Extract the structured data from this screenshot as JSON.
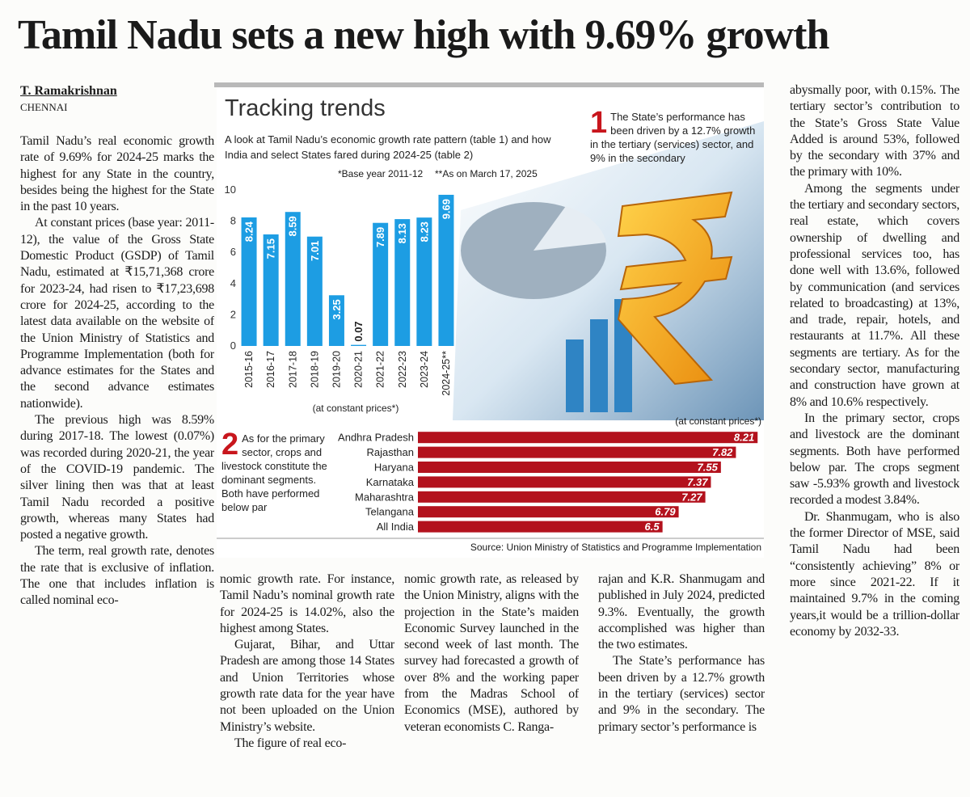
{
  "headline": "Tamil Nadu sets a new high with 9.69% growth",
  "byline": "T. Ramakrishnan",
  "dateline": "CHENNAI",
  "columns": {
    "left": [
      "Tamil Nadu’s real economic growth rate of 9.69% for 2024-25 marks the highest for any State in the country, besides being the highest for the State in the past 10 years.",
      "At constant prices (base year: 2011-12), the value of the Gross State Domestic Product (GSDP) of Tamil Nadu, estimated at ₹15,71,368 crore for 2023-24, had risen to ₹17,23,698 crore for 2024-25, according to the latest data available on the website of the Union Ministry of Statistics and Programme Implementation (both for advance estimates for the States and the second advance estimates nationwide).",
      "The previous high was 8.59% during 2017-18. The lowest (0.07%) was recorded during 2020-21, the year of the COVID-19 pandemic. The silver lining then was that at least Tamil Nadu recorded a positive growth, whereas many States had posted a negative growth.",
      "The term, real growth rate, denotes the rate that is exclusive of inflation. The one that includes inflation is called nominal eco-"
    ],
    "bottom1": [
      "nomic growth rate. For instance, Tamil Nadu’s nominal growth rate for 2024-25 is 14.02%, also the highest among States.",
      "Gujarat, Bihar, and Uttar Pradesh are among those 14 States and Union Territories whose growth rate data for the year have not been uploaded on the Union Ministry’s website.",
      "The figure of real eco-"
    ],
    "bottom2": [
      "nomic growth rate, as released by the Union Ministry, aligns with the projection in the State’s maiden Economic Survey launched in the second week of last month. The survey had forecasted a growth of over 8% and the working paper from the Madras School of Economics (MSE), authored by veteran economists C. Ranga-"
    ],
    "bottom3": [
      "rajan and K.R. Shanmugam and published in July 2024, predicted 9.3%. Eventually, the growth accomplished was higher than the two estimates.",
      "The State’s performance has been driven by a 12.7% growth in the tertiary (services) sector and 9% in the secondary. The primary sector’s performance is"
    ],
    "right": [
      "abysmally poor, with 0.15%. The tertiary sector’s contribution to the State’s Gross State Value Added is around 53%, followed by the secondary with 37% and the primary with 10%.",
      "Among the segments under the tertiary and secondary sectors, real estate, which covers ownership of dwelling and professional services too, has done well with 13.6%, followed by communication (and services related to broadcasting) at 13%, and trade, repair, hotels, and restaurants at 11.7%. All these segments are tertiary. As for the secondary sector, manufacturing and construction have grown at 8% and 10.6% respectively.",
      "In the primary sector, crops and livestock are the dominant segments. Both have performed below par. The crops segment saw -5.93% growth and livestock recorded a modest 3.84%.",
      "Dr. Shanmugam, who is also the former Director of MSE, said Tamil Nadu had been “consistently achieving” 8% or more since 2021-22. If it maintained 9.7% in the coming years,it would be a trillion-dollar economy by 2032-33."
    ]
  },
  "infographic": {
    "title": "Tracking trends",
    "subtitle": "A look at Tamil Nadu’s economic growth rate pattern (table 1) and how India and select States fared during 2024-25 (table 2)",
    "notes": [
      "*Base year 2011-12",
      "**As on March 17, 2025"
    ],
    "callouts": [
      {
        "number": "1",
        "text": "The State’s performance has been driven by a 12.7% growth in the tertiary (services) sector, and 9% in the secondary"
      },
      {
        "number": "2",
        "text": "As for the primary sector, crops and livestock constitute the dominant segments. Both have performed below par"
      }
    ],
    "source": "Source: Union Ministry of Statistics and Programme Implementation"
  },
  "chart_data": [
    {
      "type": "bar",
      "categories": [
        "2015-16",
        "2016-17",
        "2017-18",
        "2018-19",
        "2019-20",
        "2020-21",
        "2021-22",
        "2022-23",
        "2023-24",
        "2024-25**"
      ],
      "values": [
        8.24,
        7.15,
        8.59,
        7.01,
        3.25,
        0.07,
        7.89,
        8.13,
        8.23,
        9.69
      ],
      "color": "#1d9de3",
      "ylim": [
        0,
        10
      ],
      "yticks": [
        0,
        2,
        4,
        6,
        8,
        10
      ],
      "x_label": "(at constant prices*)"
    },
    {
      "type": "barh",
      "categories": [
        "Andhra Pradesh",
        "Rajasthan",
        "Haryana",
        "Karnataka",
        "Maharashtra",
        "Telangana",
        "All India"
      ],
      "values": [
        8.21,
        7.82,
        7.55,
        7.37,
        7.27,
        6.79,
        6.5
      ],
      "color": "#b3121d",
      "xlim": [
        2.1,
        8.25
      ],
      "note": "(at constant prices*)"
    }
  ]
}
